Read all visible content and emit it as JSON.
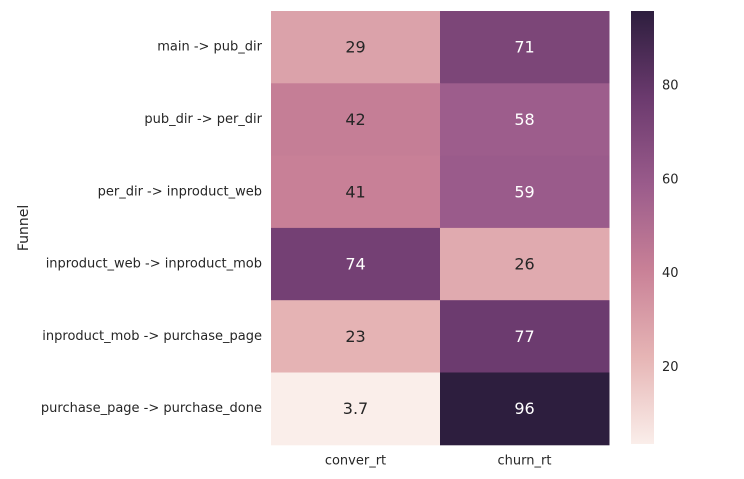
{
  "chart_data": {
    "type": "heatmap",
    "title": "",
    "xlabel": "",
    "ylabel": "Funnel",
    "rows": [
      "main -> pub_dir",
      "pub_dir -> per_dir",
      "per_dir -> inproduct_web",
      "inproduct_web -> inproduct_mob",
      "inproduct_mob -> purchase_page",
      "purchase_page -> purchase_done"
    ],
    "columns": [
      "conver_rt",
      "churn_rt"
    ],
    "values": [
      [
        29,
        71
      ],
      [
        42,
        58
      ],
      [
        41,
        59
      ],
      [
        74,
        26
      ],
      [
        23,
        77
      ],
      [
        3.7,
        96
      ]
    ],
    "annotations": [
      [
        "29",
        "71"
      ],
      [
        "42",
        "58"
      ],
      [
        "41",
        "59"
      ],
      [
        "74",
        "26"
      ],
      [
        "23",
        "77"
      ],
      [
        "3.7",
        "96"
      ]
    ],
    "colorbar": {
      "range": [
        3.7,
        96
      ],
      "ticks": [
        20,
        40,
        60,
        80
      ],
      "colormap": [
        "#faeeea",
        "#e6b5b5",
        "#c98197",
        "#9a5b8b",
        "#6b3a6e",
        "#2d1e3e"
      ]
    }
  }
}
